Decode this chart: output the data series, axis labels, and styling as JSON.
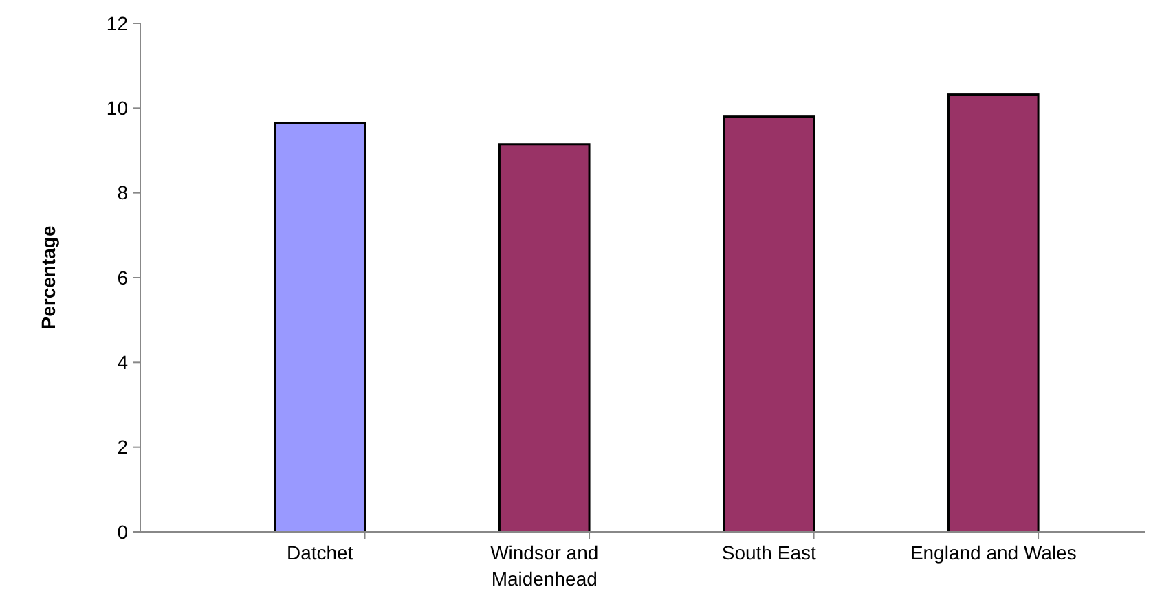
{
  "chart_data": {
    "type": "bar",
    "ylabel": "Percentage",
    "categories": [
      "Datchet",
      "Windsor and Maidenhead",
      "South East",
      "England and Wales"
    ],
    "values": [
      9.65,
      9.15,
      9.8,
      10.32
    ],
    "colors": [
      "#9999ff",
      "#993366",
      "#993366",
      "#993366"
    ],
    "ylim": [
      0,
      12
    ],
    "yticks": [
      0,
      2,
      4,
      6,
      8,
      10,
      12
    ],
    "grid": false
  }
}
